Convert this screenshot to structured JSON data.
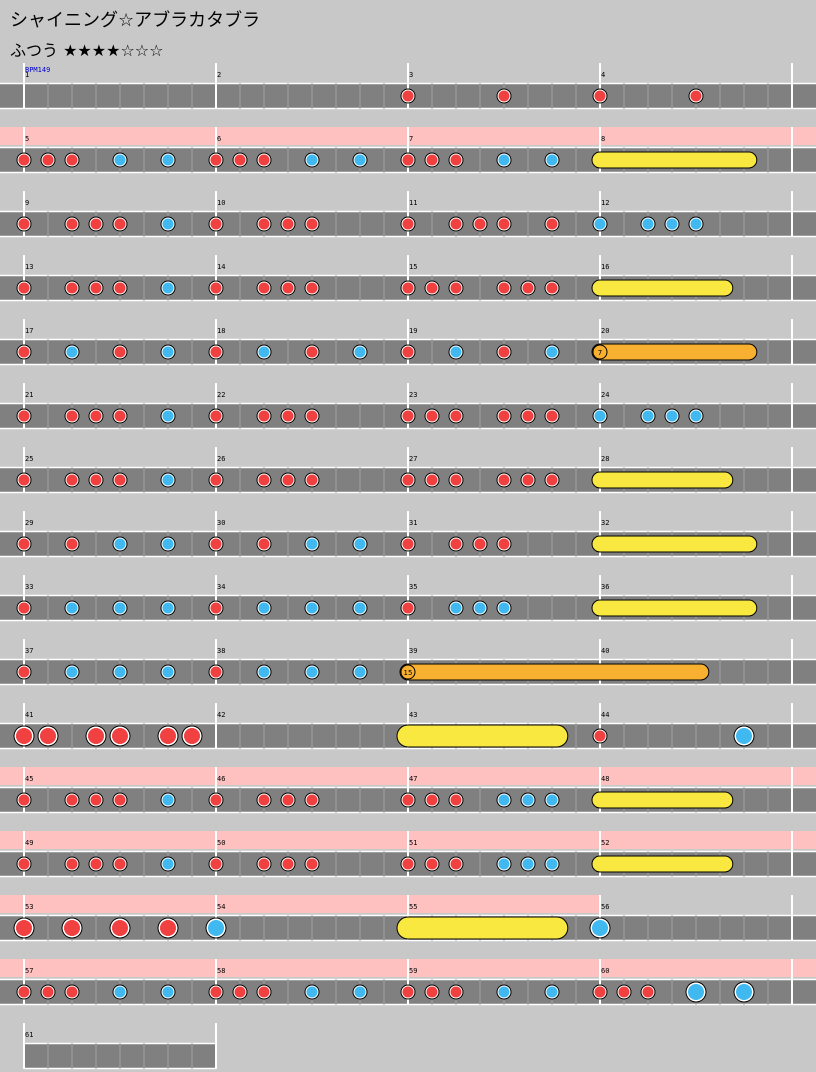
{
  "header": {
    "title": "シャイニング☆アブラカタブラ",
    "difficulty": "ふつう ★★★★☆☆☆",
    "bpm": "BPM149"
  },
  "chart_data": {
    "type": "taiko-score",
    "measures_per_row": 4,
    "subdivision": 8,
    "total_measures": 61,
    "rows": [
      {
        "gogo": false,
        "notes": [
          [
            2,
            0,
            "d"
          ],
          [
            2,
            4,
            "d"
          ],
          [
            3,
            0,
            "d"
          ],
          [
            3,
            4,
            "d"
          ]
        ]
      },
      {
        "gogo": true,
        "notes": [
          [
            0,
            0,
            "d"
          ],
          [
            0,
            1,
            "d"
          ],
          [
            0,
            2,
            "d"
          ],
          [
            0,
            4,
            "k"
          ],
          [
            0,
            6,
            "k"
          ],
          [
            1,
            0,
            "d"
          ],
          [
            1,
            1,
            "d"
          ],
          [
            1,
            2,
            "d"
          ],
          [
            1,
            4,
            "k"
          ],
          [
            1,
            6,
            "k"
          ],
          [
            2,
            0,
            "d"
          ],
          [
            2,
            1,
            "d"
          ],
          [
            2,
            2,
            "d"
          ],
          [
            2,
            4,
            "k"
          ],
          [
            2,
            6,
            "k"
          ]
        ],
        "rolls": [
          [
            3,
            0,
            6.2,
            "roll"
          ]
        ]
      },
      {
        "gogo": false,
        "notes": [
          [
            0,
            0,
            "d"
          ],
          [
            0,
            2,
            "d"
          ],
          [
            0,
            3,
            "d"
          ],
          [
            0,
            4,
            "d"
          ],
          [
            0,
            6,
            "k"
          ],
          [
            1,
            0,
            "d"
          ],
          [
            1,
            2,
            "d"
          ],
          [
            1,
            3,
            "d"
          ],
          [
            1,
            4,
            "d"
          ],
          [
            2,
            0,
            "d"
          ],
          [
            2,
            2,
            "d"
          ],
          [
            2,
            3,
            "d"
          ],
          [
            2,
            4,
            "d"
          ],
          [
            2,
            6,
            "d"
          ],
          [
            3,
            0,
            "k"
          ],
          [
            3,
            2,
            "k"
          ],
          [
            3,
            3,
            "k"
          ],
          [
            3,
            4,
            "k"
          ]
        ]
      },
      {
        "gogo": false,
        "notes": [
          [
            0,
            0,
            "d"
          ],
          [
            0,
            2,
            "d"
          ],
          [
            0,
            3,
            "d"
          ],
          [
            0,
            4,
            "d"
          ],
          [
            0,
            6,
            "k"
          ],
          [
            1,
            0,
            "d"
          ],
          [
            1,
            2,
            "d"
          ],
          [
            1,
            3,
            "d"
          ],
          [
            1,
            4,
            "d"
          ],
          [
            2,
            0,
            "d"
          ],
          [
            2,
            1,
            "d"
          ],
          [
            2,
            2,
            "d"
          ],
          [
            2,
            4,
            "d"
          ],
          [
            2,
            5,
            "d"
          ],
          [
            2,
            6,
            "d"
          ]
        ],
        "rolls": [
          [
            3,
            0,
            5.2,
            "roll"
          ]
        ]
      },
      {
        "gogo": false,
        "notes": [
          [
            0,
            0,
            "d"
          ],
          [
            0,
            2,
            "k"
          ],
          [
            0,
            4,
            "d"
          ],
          [
            0,
            6,
            "k"
          ],
          [
            1,
            0,
            "d"
          ],
          [
            1,
            2,
            "k"
          ],
          [
            1,
            4,
            "d"
          ],
          [
            1,
            6,
            "k"
          ],
          [
            2,
            0,
            "d"
          ],
          [
            2,
            2,
            "k"
          ],
          [
            2,
            4,
            "d"
          ],
          [
            2,
            6,
            "k"
          ]
        ],
        "rolls": [
          [
            3,
            0,
            6.2,
            "balloon",
            "7"
          ]
        ]
      },
      {
        "gogo": false,
        "notes": [
          [
            0,
            0,
            "d"
          ],
          [
            0,
            2,
            "d"
          ],
          [
            0,
            3,
            "d"
          ],
          [
            0,
            4,
            "d"
          ],
          [
            0,
            6,
            "k"
          ],
          [
            1,
            0,
            "d"
          ],
          [
            1,
            2,
            "d"
          ],
          [
            1,
            3,
            "d"
          ],
          [
            1,
            4,
            "d"
          ],
          [
            2,
            0,
            "d"
          ],
          [
            2,
            1,
            "d"
          ],
          [
            2,
            2,
            "d"
          ],
          [
            2,
            4,
            "d"
          ],
          [
            2,
            5,
            "d"
          ],
          [
            2,
            6,
            "d"
          ],
          [
            3,
            0,
            "k"
          ],
          [
            3,
            2,
            "k"
          ],
          [
            3,
            3,
            "k"
          ],
          [
            3,
            4,
            "k"
          ]
        ]
      },
      {
        "gogo": false,
        "notes": [
          [
            0,
            0,
            "d"
          ],
          [
            0,
            2,
            "d"
          ],
          [
            0,
            3,
            "d"
          ],
          [
            0,
            4,
            "d"
          ],
          [
            0,
            6,
            "k"
          ],
          [
            1,
            0,
            "d"
          ],
          [
            1,
            2,
            "d"
          ],
          [
            1,
            3,
            "d"
          ],
          [
            1,
            4,
            "d"
          ],
          [
            2,
            0,
            "d"
          ],
          [
            2,
            1,
            "d"
          ],
          [
            2,
            2,
            "d"
          ],
          [
            2,
            4,
            "d"
          ],
          [
            2,
            5,
            "d"
          ],
          [
            2,
            6,
            "d"
          ]
        ],
        "rolls": [
          [
            3,
            0,
            5.2,
            "roll"
          ]
        ]
      },
      {
        "gogo": false,
        "notes": [
          [
            0,
            0,
            "d"
          ],
          [
            0,
            2,
            "d"
          ],
          [
            0,
            4,
            "k"
          ],
          [
            0,
            6,
            "k"
          ],
          [
            1,
            0,
            "d"
          ],
          [
            1,
            2,
            "d"
          ],
          [
            1,
            4,
            "k"
          ],
          [
            1,
            6,
            "k"
          ],
          [
            2,
            0,
            "d"
          ],
          [
            2,
            2,
            "d"
          ],
          [
            2,
            3,
            "d"
          ],
          [
            2,
            4,
            "d"
          ]
        ],
        "rolls": [
          [
            3,
            0,
            6.2,
            "roll"
          ]
        ]
      },
      {
        "gogo": false,
        "notes": [
          [
            0,
            0,
            "d"
          ],
          [
            0,
            2,
            "k"
          ],
          [
            0,
            4,
            "k"
          ],
          [
            0,
            6,
            "k"
          ],
          [
            1,
            0,
            "d"
          ],
          [
            1,
            2,
            "k"
          ],
          [
            1,
            4,
            "k"
          ],
          [
            1,
            6,
            "k"
          ],
          [
            2,
            0,
            "d"
          ],
          [
            2,
            2,
            "k"
          ],
          [
            2,
            3,
            "k"
          ],
          [
            2,
            4,
            "k"
          ]
        ],
        "rolls": [
          [
            3,
            0,
            6.2,
            "roll"
          ]
        ]
      },
      {
        "gogo": false,
        "notes": [
          [
            0,
            0,
            "d"
          ],
          [
            0,
            2,
            "k"
          ],
          [
            0,
            4,
            "k"
          ],
          [
            0,
            6,
            "k"
          ],
          [
            1,
            0,
            "d"
          ],
          [
            1,
            2,
            "k"
          ],
          [
            1,
            4,
            "k"
          ],
          [
            1,
            6,
            "k"
          ]
        ],
        "rolls": [
          [
            2,
            0,
            12.2,
            "balloon",
            "15"
          ]
        ]
      },
      {
        "gogo": false,
        "notes": [
          [
            0,
            0,
            "D"
          ],
          [
            0,
            1,
            "D"
          ],
          [
            0,
            3,
            "D"
          ],
          [
            0,
            4,
            "D"
          ],
          [
            0,
            6,
            "D"
          ],
          [
            0,
            7,
            "D"
          ],
          [
            3,
            0,
            "d"
          ],
          [
            3,
            6,
            "K"
          ]
        ],
        "rolls": [
          [
            2,
            0,
            6.2,
            "bigroll"
          ]
        ]
      },
      {
        "gogo": true,
        "notes": [
          [
            0,
            0,
            "d"
          ],
          [
            0,
            2,
            "d"
          ],
          [
            0,
            3,
            "d"
          ],
          [
            0,
            4,
            "d"
          ],
          [
            0,
            6,
            "k"
          ],
          [
            1,
            0,
            "d"
          ],
          [
            1,
            2,
            "d"
          ],
          [
            1,
            3,
            "d"
          ],
          [
            1,
            4,
            "d"
          ],
          [
            2,
            0,
            "d"
          ],
          [
            2,
            1,
            "d"
          ],
          [
            2,
            2,
            "d"
          ],
          [
            2,
            4,
            "k"
          ],
          [
            2,
            5,
            "k"
          ],
          [
            2,
            6,
            "k"
          ]
        ],
        "rolls": [
          [
            3,
            0,
            5.2,
            "roll"
          ]
        ]
      },
      {
        "gogo": true,
        "notes": [
          [
            0,
            0,
            "d"
          ],
          [
            0,
            2,
            "d"
          ],
          [
            0,
            3,
            "d"
          ],
          [
            0,
            4,
            "d"
          ],
          [
            0,
            6,
            "k"
          ],
          [
            1,
            0,
            "d"
          ],
          [
            1,
            2,
            "d"
          ],
          [
            1,
            3,
            "d"
          ],
          [
            1,
            4,
            "d"
          ],
          [
            2,
            0,
            "d"
          ],
          [
            2,
            1,
            "d"
          ],
          [
            2,
            2,
            "d"
          ],
          [
            2,
            4,
            "k"
          ],
          [
            2,
            5,
            "k"
          ],
          [
            2,
            6,
            "k"
          ]
        ],
        "rolls": [
          [
            3,
            0,
            5.2,
            "roll"
          ]
        ]
      },
      {
        "gogo": true,
        "gogo_measures": 3,
        "notes": [
          [
            0,
            0,
            "D"
          ],
          [
            0,
            2,
            "D"
          ],
          [
            0,
            4,
            "D"
          ],
          [
            0,
            6,
            "D"
          ],
          [
            1,
            0,
            "K"
          ],
          [
            3,
            0,
            "K"
          ]
        ],
        "rolls": [
          [
            2,
            0,
            6.2,
            "bigroll"
          ]
        ]
      },
      {
        "gogo": true,
        "notes": [
          [
            0,
            0,
            "d"
          ],
          [
            0,
            1,
            "d"
          ],
          [
            0,
            2,
            "d"
          ],
          [
            0,
            4,
            "k"
          ],
          [
            0,
            6,
            "k"
          ],
          [
            1,
            0,
            "d"
          ],
          [
            1,
            1,
            "d"
          ],
          [
            1,
            2,
            "d"
          ],
          [
            1,
            4,
            "k"
          ],
          [
            1,
            6,
            "k"
          ],
          [
            2,
            0,
            "d"
          ],
          [
            2,
            1,
            "d"
          ],
          [
            2,
            2,
            "d"
          ],
          [
            2,
            4,
            "k"
          ],
          [
            2,
            6,
            "k"
          ],
          [
            3,
            0,
            "d"
          ],
          [
            3,
            1,
            "d"
          ],
          [
            3,
            2,
            "d"
          ],
          [
            3,
            4,
            "K"
          ],
          [
            3,
            6,
            "K"
          ]
        ]
      },
      {
        "gogo": false,
        "measures": 1,
        "notes": []
      }
    ]
  }
}
